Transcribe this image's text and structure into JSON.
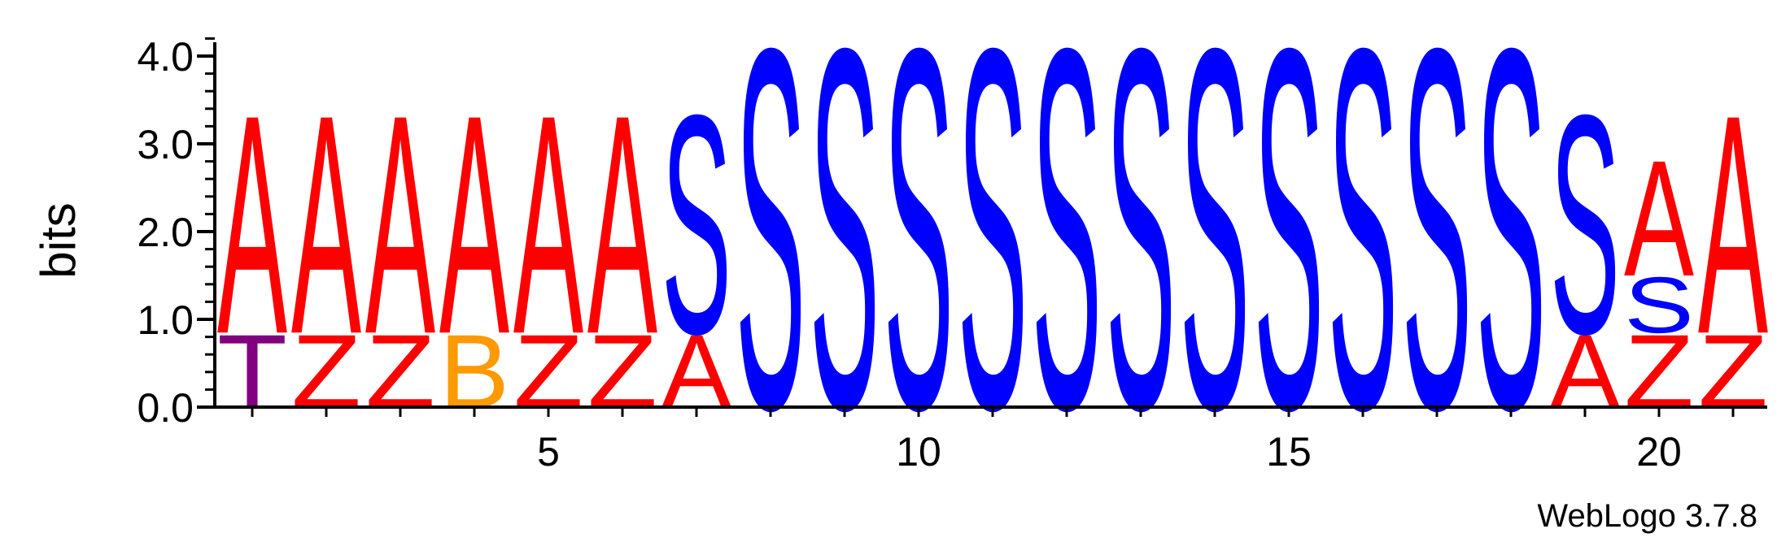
{
  "chart_data": {
    "type": "sequence-logo",
    "ylabel": "bits",
    "ylim": [
      0,
      4.2
    ],
    "y_ticks": [
      "0.0",
      "1.0",
      "2.0",
      "3.0",
      "4.0"
    ],
    "y_tick_values": [
      0,
      1,
      2,
      3,
      4
    ],
    "x_tick_labels": [
      "5",
      "10",
      "15",
      "20"
    ],
    "x_tick_positions": [
      5,
      10,
      15,
      20
    ],
    "positions": [
      1,
      2,
      3,
      4,
      5,
      6,
      7,
      8,
      9,
      10,
      11,
      12,
      13,
      14,
      15,
      16,
      17,
      18,
      19,
      20,
      21
    ],
    "footer": "WebLogo 3.7.8",
    "colors": {
      "A": "#ff0000",
      "Z": "#ff0000",
      "S": "#0000ff",
      "T": "#800080",
      "B": "#ff9900"
    },
    "stacks": [
      [
        {
          "letter": "T",
          "height": 0.85
        },
        {
          "letter": "A",
          "height": 2.55
        }
      ],
      [
        {
          "letter": "Z",
          "height": 0.85
        },
        {
          "letter": "A",
          "height": 2.55
        }
      ],
      [
        {
          "letter": "Z",
          "height": 0.85
        },
        {
          "letter": "A",
          "height": 2.55
        }
      ],
      [
        {
          "letter": "B",
          "height": 0.85
        },
        {
          "letter": "A",
          "height": 2.55
        }
      ],
      [
        {
          "letter": "Z",
          "height": 0.85
        },
        {
          "letter": "A",
          "height": 2.55
        }
      ],
      [
        {
          "letter": "Z",
          "height": 0.85
        },
        {
          "letter": "A",
          "height": 2.55
        }
      ],
      [
        {
          "letter": "A",
          "height": 0.85
        },
        {
          "letter": "S",
          "height": 2.55
        }
      ],
      [
        {
          "letter": "S",
          "height": 4.2
        }
      ],
      [
        {
          "letter": "S",
          "height": 4.2
        }
      ],
      [
        {
          "letter": "S",
          "height": 4.2
        }
      ],
      [
        {
          "letter": "S",
          "height": 4.2
        }
      ],
      [
        {
          "letter": "S",
          "height": 4.2
        }
      ],
      [
        {
          "letter": "S",
          "height": 4.2
        }
      ],
      [
        {
          "letter": "S",
          "height": 4.2
        }
      ],
      [
        {
          "letter": "S",
          "height": 4.2
        }
      ],
      [
        {
          "letter": "S",
          "height": 4.2
        }
      ],
      [
        {
          "letter": "S",
          "height": 4.2
        }
      ],
      [
        {
          "letter": "S",
          "height": 4.2
        }
      ],
      [
        {
          "letter": "A",
          "height": 0.85
        },
        {
          "letter": "S",
          "height": 2.55
        }
      ],
      [
        {
          "letter": "Z",
          "height": 0.85
        },
        {
          "letter": "S",
          "height": 0.65
        },
        {
          "letter": "A",
          "height": 1.35
        }
      ],
      [
        {
          "letter": "Z",
          "height": 0.85
        },
        {
          "letter": "A",
          "height": 2.55
        }
      ]
    ]
  }
}
